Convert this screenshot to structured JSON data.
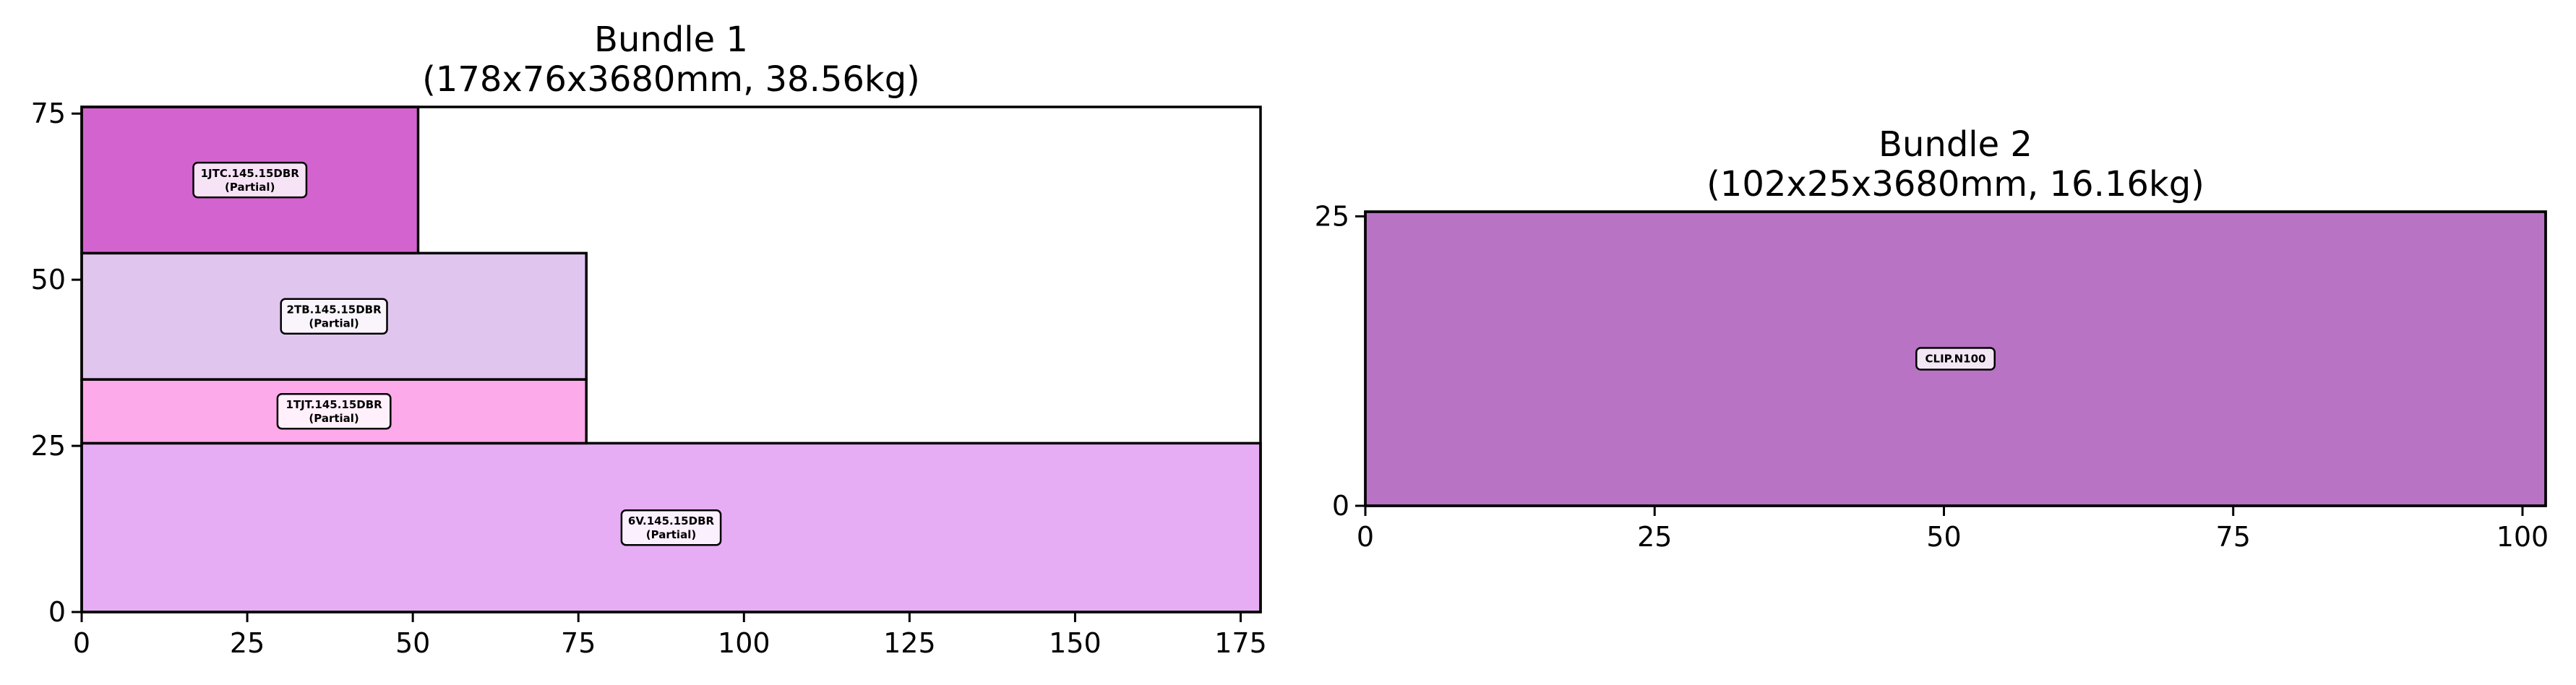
{
  "chart_data": [
    {
      "type": "packing-layout",
      "title": "Bundle 1",
      "subtitle": "(178x76x3680mm, 38.56kg)",
      "xlim": [
        0,
        178
      ],
      "ylim": [
        0,
        76
      ],
      "x_ticks": [
        0,
        25,
        50,
        75,
        100,
        125,
        150,
        175
      ],
      "y_ticks": [
        0,
        25,
        50,
        75
      ],
      "items": [
        {
          "label": "6V.145.15DBR",
          "note": "(Partial)",
          "x": 0,
          "y": 0,
          "w": 178,
          "h": 25.4,
          "color": "#e6adf5"
        },
        {
          "label": "1TJT.145.15DBR",
          "note": "(Partial)",
          "x": 0,
          "y": 25.4,
          "w": 76.2,
          "h": 9.6,
          "color": "#fcaae9"
        },
        {
          "label": "2TB.145.15DBR",
          "note": "(Partial)",
          "x": 0,
          "y": 35,
          "w": 76.2,
          "h": 19,
          "color": "#e0c6ee"
        },
        {
          "label": "1JTC.145.15DBR",
          "note": "(Partial)",
          "x": 0,
          "y": 54,
          "w": 50.8,
          "h": 22,
          "color": "#d363ce"
        }
      ]
    },
    {
      "type": "packing-layout",
      "title": "Bundle 2",
      "subtitle": "(102x25x3680mm, 16.16kg)",
      "xlim": [
        0,
        102
      ],
      "ylim": [
        0,
        25.4
      ],
      "x_ticks": [
        0,
        25,
        50,
        75,
        100
      ],
      "y_ticks": [
        0,
        25
      ],
      "items": [
        {
          "label": "CLIP.N100",
          "note": "",
          "x": 0,
          "y": 0,
          "w": 102,
          "h": 25.4,
          "color": "#b873c4"
        }
      ]
    }
  ]
}
